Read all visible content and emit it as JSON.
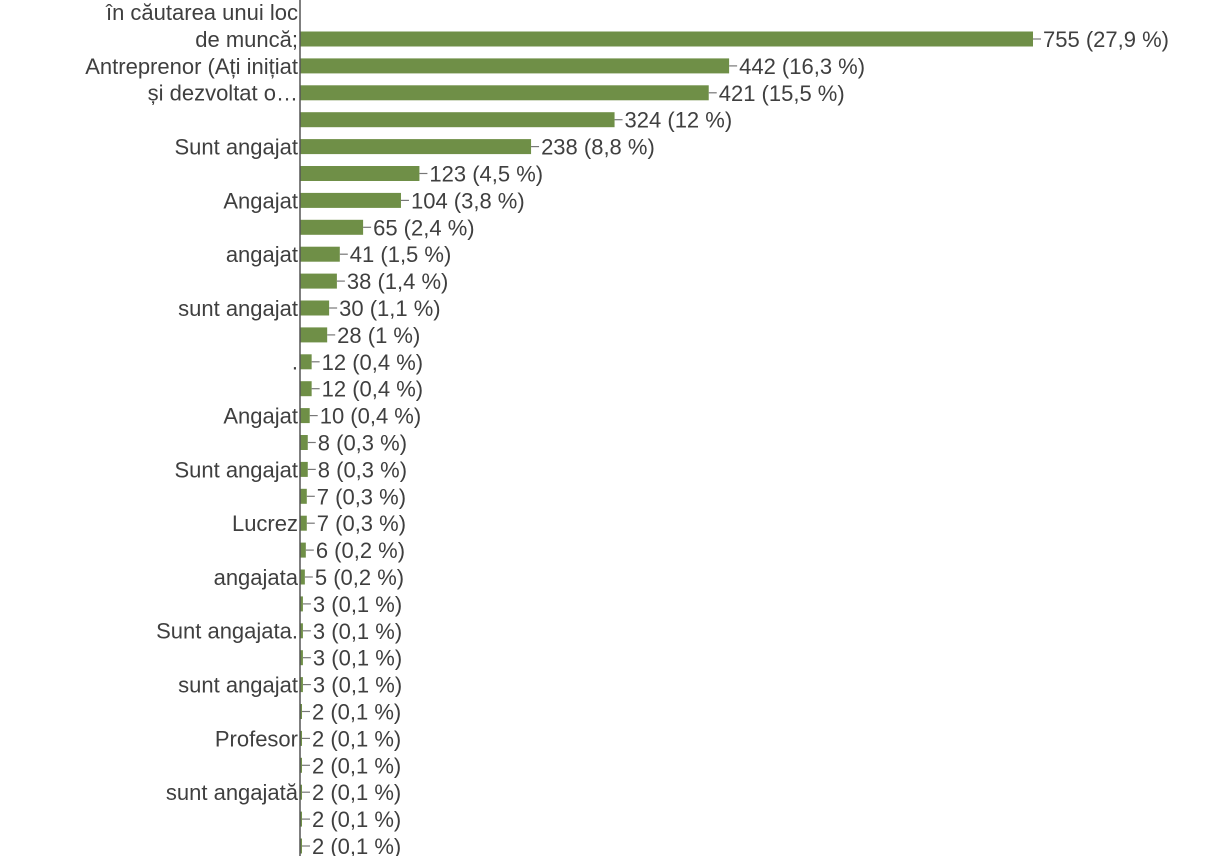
{
  "chart_data": {
    "type": "bar",
    "orientation": "horizontal",
    "title": "",
    "xlabel": "",
    "ylabel": "",
    "grid": false,
    "legend": "none",
    "bar_color": "#6f8f47",
    "xlim": [
      0,
      755
    ],
    "categories": [
      "în căutarea unui loc",
      "de muncă;",
      "Antreprenor (Ați inițiat",
      "și dezvoltat o…",
      "",
      "Sunt angajat",
      "",
      "Angajat",
      "",
      "angajat",
      "",
      "sunt angajat",
      "",
      ".",
      "",
      "Angajat",
      "",
      "Sunt angajat",
      "",
      "Lucrez",
      "",
      "angajata",
      "",
      "Sunt angajata.",
      "",
      "sunt angajat",
      "",
      "Profesor",
      "",
      "sunt angajată",
      ""
    ],
    "values": [
      755,
      442,
      421,
      324,
      238,
      123,
      104,
      65,
      41,
      38,
      30,
      28,
      12,
      12,
      10,
      8,
      8,
      7,
      7,
      6,
      5,
      3,
      3,
      3,
      3,
      2,
      2,
      2,
      2,
      2,
      2
    ],
    "data_labels": [
      "755 (27,9 %)",
      "442 (16,3 %)",
      "421 (15,5 %)",
      "324 (12 %)",
      "238 (8,8 %)",
      "123 (4,5 %)",
      "104 (3,8 %)",
      "65 (2,4 %)",
      "41 (1,5 %)",
      "38 (1,4 %)",
      "30 (1,1 %)",
      "28 (1 %)",
      "12 (0,4 %)",
      "12 (0,4 %)",
      "10 (0,4 %)",
      "8 (0,3 %)",
      "8 (0,3 %)",
      "7 (0,3 %)",
      "7 (0,3 %)",
      "6 (0,2 %)",
      "5 (0,2 %)",
      "3 (0,1 %)",
      "3 (0,1 %)",
      "3 (0,1 %)",
      "3 (0,1 %)",
      "2 (0,1 %)",
      "2 (0,1 %)",
      "2 (0,1 %)",
      "2 (0,1 %)",
      "2 (0,1 %)",
      "2 (0,1 %)"
    ]
  }
}
